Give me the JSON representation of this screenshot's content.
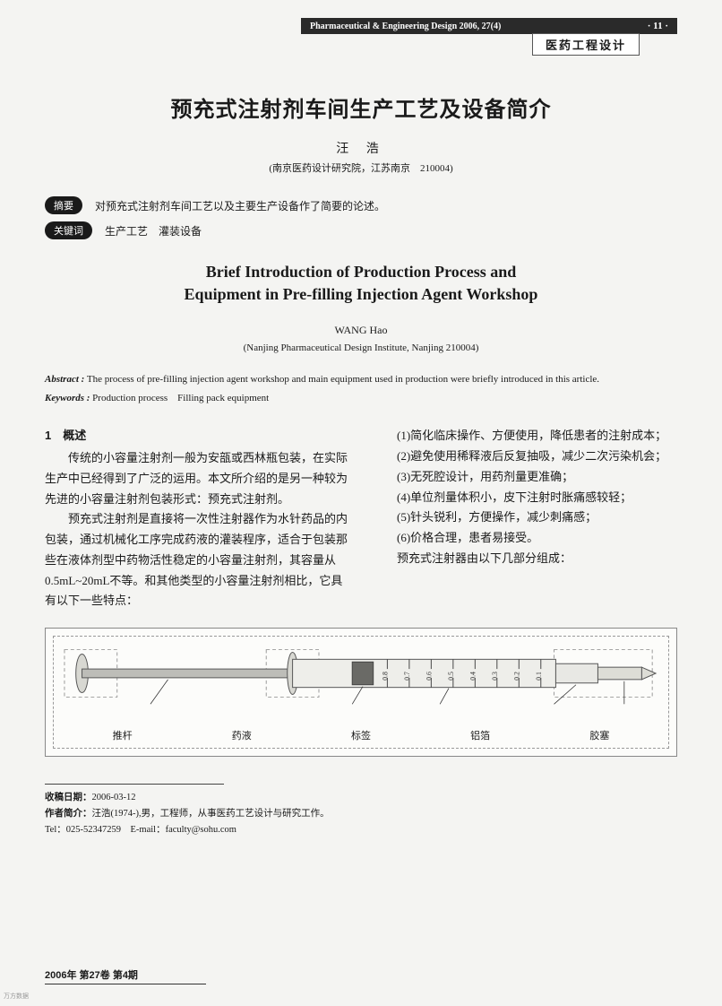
{
  "header": {
    "journal": "Pharmaceutical & Engineering Design 2006, 27(4)",
    "page_num": "· 11 ·",
    "sub": "医药工程设计"
  },
  "title_cn": "预充式注射剂车间生产工艺及设备简介",
  "author_cn": "汪 浩",
  "affil_cn": "(南京医药设计研究院，江苏南京　210004)",
  "abstract_label_cn": "摘要",
  "abstract_cn": "对预充式注射剂车间工艺以及主要生产设备作了简要的论述。",
  "keywords_label_cn": "关键词",
  "keywords_cn": "生产工艺　灌装设备",
  "title_en_1": "Brief Introduction of Production Process and",
  "title_en_2": "Equipment in Pre-filling Injection Agent Workshop",
  "author_en": "WANG Hao",
  "affil_en": "(Nanjing Pharmaceutical Design Institute, Nanjing 210004)",
  "abstract_en_label": "Abstract :",
  "abstract_en": "The process of pre-filling injection agent workshop and main equipment used in production were briefly introduced in this article.",
  "keywords_en_label": "Keywords :",
  "keywords_en": "Production process　Filling pack equipment",
  "section1_heading": "1　概述",
  "col_left": {
    "p1": "传统的小容量注射剂一般为安瓿或西林瓶包装，在实际生产中已经得到了广泛的运用。本文所介绍的是另一种较为先进的小容量注射剂包装形式：预充式注射剂。",
    "p2": "预充式注射剂是直接将一次性注射器作为水针药品的内包装，通过机械化工序完成药液的灌装程序，适合于包装那些在液体剂型中药物活性稳定的小容量注射剂，其容量从0.5mL~20mL不等。和其他类型的小容量注射剂相比，它具有以下一些特点："
  },
  "col_right": {
    "l1": "(1)简化临床操作、方便使用，降低患者的注射成本；",
    "l2": "(2)避免使用稀释液后反复抽吸，减少二次污染机会；",
    "l3": "(3)无死腔设计，用药剂量更准确；",
    "l4": "(4)单位剂量体积小，皮下注射时胀痛感较轻；",
    "l5": "(5)针头锐利，方便操作，减少刺痛感；",
    "l6": "(6)价格合理，患者易接受。",
    "l7": "预充式注射器由以下几部分组成："
  },
  "figure": {
    "ticks": [
      "0.1",
      "0.2",
      "0.3",
      "0.4",
      "0.5",
      "0.6",
      "0.7",
      "0.8"
    ],
    "labels": [
      "推杆",
      "药液",
      "标签",
      "铝箔",
      "胶塞"
    ],
    "colors": {
      "outline": "#555555",
      "dash": "#999999",
      "body": "#e8e8e4",
      "shaft": "#bdbdb8",
      "liquid": "#6a6a66"
    }
  },
  "footer": {
    "recv_label": "收稿日期：",
    "recv": "2006-03-12",
    "bio_label": "作者简介：",
    "bio": "汪浩(1974-),男，工程师，从事医药工艺设计与研究工作。",
    "tel_label": "Tel：",
    "tel": "025-52347259",
    "email_label": "E-mail：",
    "email": "faculty@sohu.com"
  },
  "bottom": "2006年 第27卷 第4期",
  "wm": "万方数据"
}
